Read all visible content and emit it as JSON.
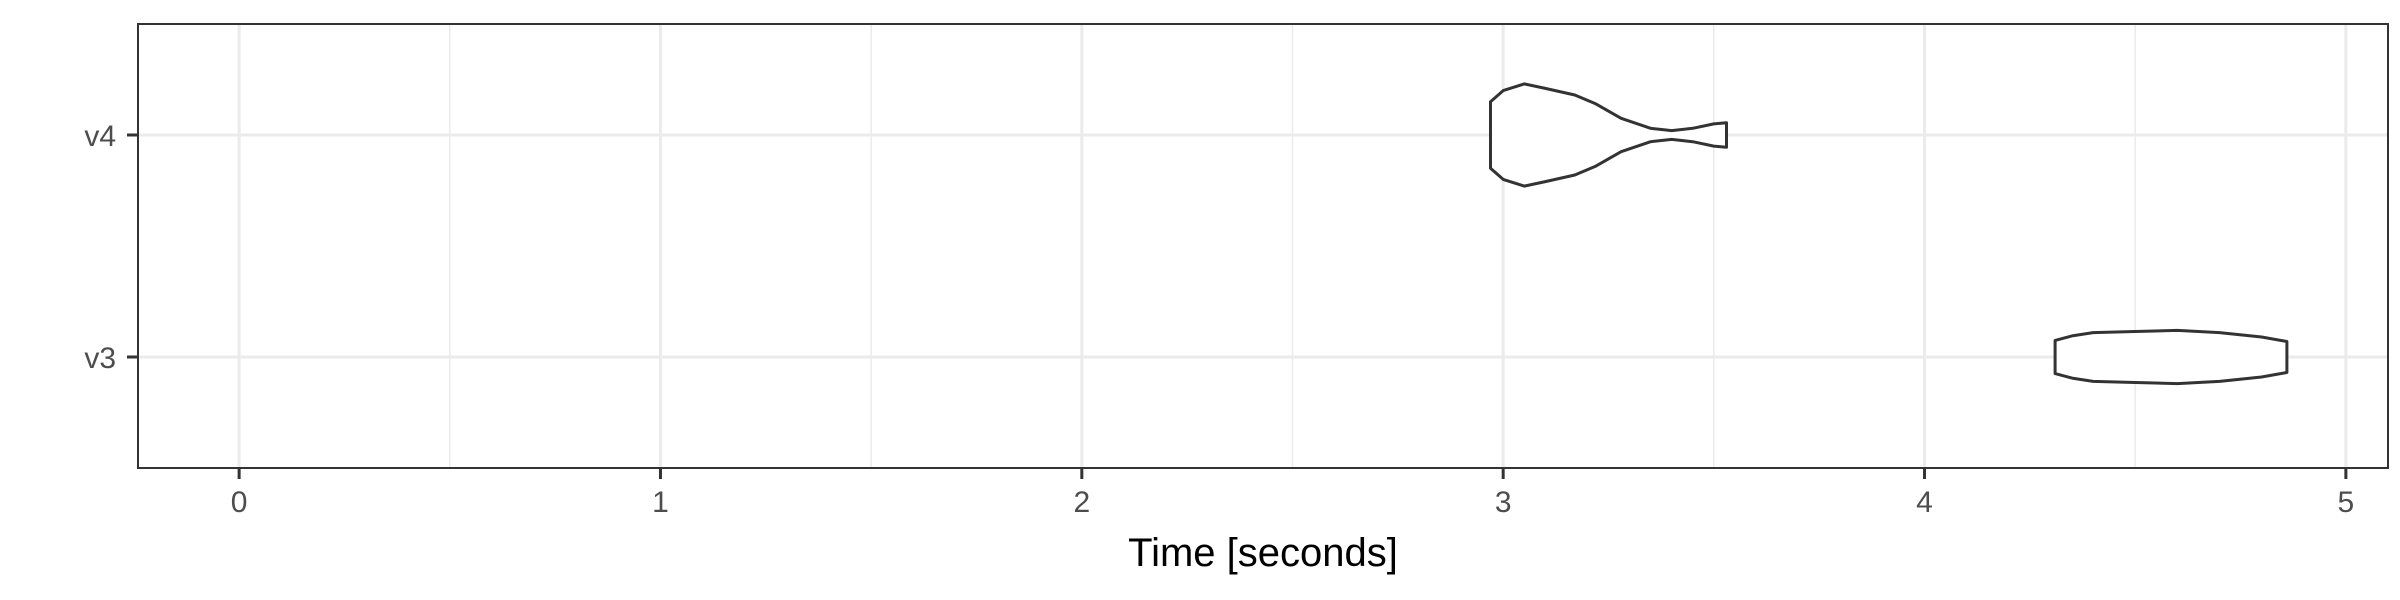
{
  "chart_data": {
    "type": "violin",
    "orientation": "horizontal",
    "xlabel": "Time [seconds]",
    "ylabel": "",
    "xlim": [
      -0.24,
      5.1
    ],
    "x_ticks": [
      0,
      1,
      2,
      3,
      4,
      5
    ],
    "x_tick_labels": [
      "0",
      "1",
      "2",
      "3",
      "4",
      "5"
    ],
    "categories": [
      "v4",
      "v3"
    ],
    "grid": true,
    "legend": "none",
    "colors": {
      "outline": "#333333",
      "fill": "#ffffff",
      "grid": "#ebebeb",
      "panel_border": "#333333",
      "tick_label": "#4d4d4d",
      "axis_title": "#000000"
    },
    "violins": [
      {
        "category": "v4",
        "min": 2.97,
        "max": 3.53,
        "max_halfwidth": 0.46,
        "density": [
          [
            2.97,
            0.3
          ],
          [
            3.0,
            0.4
          ],
          [
            3.05,
            0.46
          ],
          [
            3.1,
            0.42
          ],
          [
            3.17,
            0.36
          ],
          [
            3.22,
            0.28
          ],
          [
            3.28,
            0.15
          ],
          [
            3.35,
            0.06
          ],
          [
            3.4,
            0.04
          ],
          [
            3.45,
            0.06
          ],
          [
            3.5,
            0.1
          ],
          [
            3.53,
            0.11
          ]
        ]
      },
      {
        "category": "v3",
        "min": 4.31,
        "max": 4.86,
        "max_halfwidth": 0.46,
        "density": [
          [
            4.31,
            0.15
          ],
          [
            4.35,
            0.19
          ],
          [
            4.4,
            0.22
          ],
          [
            4.5,
            0.23
          ],
          [
            4.6,
            0.24
          ],
          [
            4.7,
            0.22
          ],
          [
            4.8,
            0.18
          ],
          [
            4.86,
            0.14
          ]
        ]
      }
    ]
  }
}
